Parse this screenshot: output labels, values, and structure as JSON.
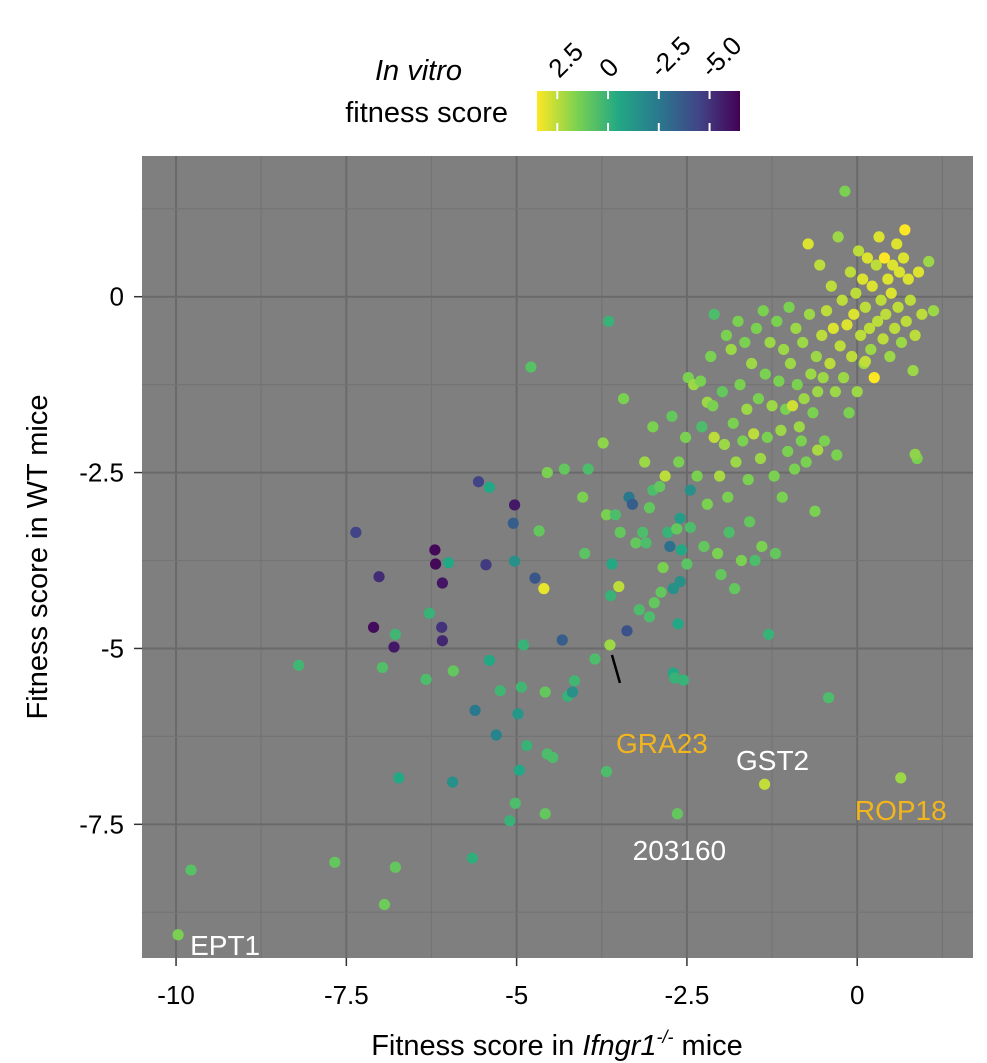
{
  "chart_data": {
    "type": "scatter",
    "xlabel_prefix": "Fitness score in ",
    "xlabel_gene": "Ifngr1",
    "xlabel_superscript": "-/-",
    "xlabel_suffix": " mice",
    "ylabel": "Fitness score in WT mice",
    "xlim": [
      -10.5,
      1.7
    ],
    "ylim": [
      -9.4,
      2.0
    ],
    "x_ticks": [
      -10,
      -7.5,
      -5,
      -2.5,
      0
    ],
    "x_tick_labels": [
      "-10",
      "-7.5",
      "-5",
      "-2.5",
      "0"
    ],
    "y_ticks": [
      0,
      -2.5,
      -5,
      -7.5
    ],
    "y_tick_labels": [
      "0",
      "-2.5",
      "-5",
      "-7.5"
    ],
    "background_color": "#7f7f7f",
    "grid": true,
    "grid_color": "#6e6e6e",
    "legend": {
      "title_line1": "In vitro",
      "title_line2": "fitness score",
      "placement": "top",
      "colormap": "viridis (reversed)",
      "range": [
        3.5,
        -6.5
      ],
      "ticks": [
        2.5,
        0,
        -2.5,
        -5.0
      ],
      "tick_labels": [
        "2.5",
        "0",
        "-2.5",
        "-5.0"
      ]
    },
    "annotations": [
      {
        "label": "EPT1",
        "x": -9.97,
        "y": -9.07,
        "color": "#ffffff"
      },
      {
        "label": "GRA23",
        "x": -3.63,
        "y": -4.95,
        "color": "#f2b51c"
      },
      {
        "label": "GST2",
        "x": -1.36,
        "y": -6.93,
        "color": "#ffffff"
      },
      {
        "label": "ROP18",
        "x": 0.64,
        "y": -6.84,
        "color": "#f2b51c"
      },
      {
        "label": "203160",
        "x": -2.64,
        "y": -7.35,
        "color": "#ffffff"
      }
    ],
    "points": [
      [
        -9.97,
        -9.07,
        1.5
      ],
      [
        -9.78,
        -8.15,
        0.7
      ],
      [
        -8.2,
        -5.24,
        0.2
      ],
      [
        -7.67,
        -8.04,
        1.0
      ],
      [
        -7.36,
        -3.35,
        -4.5
      ],
      [
        -7.1,
        -4.7,
        -6.2
      ],
      [
        -7.02,
        -3.98,
        -5.2
      ],
      [
        -6.97,
        -5.27,
        0.6
      ],
      [
        -6.94,
        -8.64,
        1.2
      ],
      [
        -6.8,
        -4.98,
        -5.8
      ],
      [
        -6.78,
        -4.8,
        0.2
      ],
      [
        -6.78,
        -8.11,
        1.0
      ],
      [
        -6.73,
        -6.84,
        -0.5
      ],
      [
        -6.33,
        -5.44,
        0.5
      ],
      [
        -6.28,
        -4.5,
        0.0
      ],
      [
        -6.2,
        -3.6,
        -6.3
      ],
      [
        -6.19,
        -3.8,
        -6.3
      ],
      [
        -6.1,
        -4.7,
        -5.0
      ],
      [
        -6.09,
        -4.07,
        -5.9
      ],
      [
        -6.09,
        -4.89,
        -5.4
      ],
      [
        -6.0,
        -3.78,
        -0.5
      ],
      [
        -5.94,
        -6.9,
        -1.5
      ],
      [
        -5.93,
        -5.32,
        1.0
      ],
      [
        -5.65,
        -7.98,
        -0.2
      ],
      [
        -5.61,
        -5.88,
        -2.5
      ],
      [
        -5.56,
        -2.63,
        -4.5
      ],
      [
        -5.45,
        -3.81,
        -4.8
      ],
      [
        -5.4,
        -5.17,
        -0.5
      ],
      [
        -5.4,
        -2.71,
        -0.5
      ],
      [
        -5.3,
        -6.23,
        -2.0
      ],
      [
        -5.24,
        -5.6,
        0.2
      ],
      [
        -5.1,
        -7.45,
        0.0
      ],
      [
        -5.05,
        -3.22,
        -3.5
      ],
      [
        -5.03,
        -3.76,
        -1.5
      ],
      [
        -5.03,
        -2.96,
        -5.8
      ],
      [
        -5.02,
        -7.2,
        0.5
      ],
      [
        -4.98,
        -5.93,
        -1.2
      ],
      [
        -4.96,
        -6.73,
        -0.5
      ],
      [
        -4.93,
        -5.55,
        0.2
      ],
      [
        -4.9,
        -4.95,
        0.0
      ],
      [
        -4.85,
        -6.38,
        0.0
      ],
      [
        -4.79,
        -1.0,
        0.7
      ],
      [
        -4.73,
        -4.0,
        -3.8
      ],
      [
        -4.67,
        -3.33,
        1.0
      ],
      [
        -4.6,
        -4.15,
        3.2
      ],
      [
        -4.58,
        -5.62,
        1.0
      ],
      [
        -4.58,
        -7.35,
        1.0
      ],
      [
        -4.55,
        -2.5,
        1.5
      ],
      [
        -4.55,
        -6.5,
        0.5
      ],
      [
        -4.47,
        -6.55,
        0.5
      ],
      [
        -4.33,
        -4.88,
        -3.5
      ],
      [
        -4.3,
        -2.45,
        1.0
      ],
      [
        -4.25,
        -5.68,
        0.0
      ],
      [
        -4.18,
        -5.62,
        -1.5
      ],
      [
        -4.15,
        -5.46,
        0.2
      ],
      [
        -4.03,
        -2.85,
        1.5
      ],
      [
        -4.0,
        -3.65,
        0.8
      ],
      [
        -3.95,
        -2.45,
        0.5
      ],
      [
        -3.85,
        -5.15,
        0.5
      ],
      [
        -3.73,
        -2.08,
        1.8
      ],
      [
        -3.68,
        -3.1,
        1.5
      ],
      [
        -3.68,
        -6.75,
        0.5
      ],
      [
        -3.65,
        -0.35,
        0.0
      ],
      [
        -3.63,
        -4.95,
        2.0
      ],
      [
        -3.62,
        -4.25,
        0.0
      ],
      [
        -3.6,
        -3.8,
        -0.5
      ],
      [
        -3.55,
        -3.1,
        0.5
      ],
      [
        -3.5,
        -4.12,
        2.5
      ],
      [
        -3.48,
        -3.35,
        1.0
      ],
      [
        -3.43,
        -1.45,
        1.5
      ],
      [
        -3.38,
        -4.75,
        -4.0
      ],
      [
        -3.35,
        -2.85,
        -2.5
      ],
      [
        -3.3,
        -2.95,
        -3.5
      ],
      [
        -3.25,
        -3.5,
        1.0
      ],
      [
        -3.2,
        -4.45,
        0.5
      ],
      [
        -3.15,
        -3.35,
        0.5
      ],
      [
        -3.12,
        -2.35,
        2.0
      ],
      [
        -3.1,
        -3.5,
        0.5
      ],
      [
        -3.05,
        -4.55,
        0.5
      ],
      [
        -3.05,
        -3.0,
        1.0
      ],
      [
        -3.0,
        -1.85,
        1.5
      ],
      [
        -3.0,
        -2.75,
        0.5
      ],
      [
        -2.98,
        -4.35,
        1.0
      ],
      [
        -2.9,
        -2.7,
        1.0
      ],
      [
        -2.88,
        -4.2,
        1.0
      ],
      [
        -2.85,
        -3.85,
        1.5
      ],
      [
        -2.82,
        -2.55,
        2.5
      ],
      [
        -2.78,
        -3.35,
        0.0
      ],
      [
        -2.75,
        -3.55,
        -2.8
      ],
      [
        -2.72,
        -1.7,
        1.0
      ],
      [
        -2.7,
        -4.15,
        -1.5
      ],
      [
        -2.7,
        -5.35,
        -0.5
      ],
      [
        -2.68,
        -5.42,
        0.0
      ],
      [
        -2.65,
        -3.3,
        1.0
      ],
      [
        -2.64,
        -7.35,
        1.0
      ],
      [
        -2.63,
        -4.65,
        -0.5
      ],
      [
        -2.62,
        -2.35,
        1.5
      ],
      [
        -2.6,
        -3.15,
        -1.0
      ],
      [
        -2.6,
        -4.05,
        -1.5
      ],
      [
        -2.58,
        -3.6,
        -0.5
      ],
      [
        -2.55,
        -5.45,
        0.0
      ],
      [
        -2.52,
        -2.0,
        1.5
      ],
      [
        -2.5,
        -3.8,
        0.8
      ],
      [
        -2.48,
        -1.15,
        1.5
      ],
      [
        -2.45,
        -2.75,
        -1.5
      ],
      [
        -2.45,
        -3.28,
        0.5
      ],
      [
        -2.4,
        -1.25,
        2.0
      ],
      [
        -2.35,
        -2.55,
        1.5
      ],
      [
        -2.3,
        -1.2,
        1.5
      ],
      [
        -2.28,
        -1.85,
        0.5
      ],
      [
        -2.25,
        -3.55,
        1.0
      ],
      [
        -2.2,
        -1.5,
        2.0
      ],
      [
        -2.2,
        -2.95,
        1.5
      ],
      [
        -2.15,
        -0.85,
        1.5
      ],
      [
        -2.12,
        -1.55,
        1.5
      ],
      [
        -2.1,
        -0.25,
        0.5
      ],
      [
        -2.1,
        -2.0,
        2.5
      ],
      [
        -2.05,
        -3.65,
        1.5
      ],
      [
        -2.02,
        -2.55,
        2.2
      ],
      [
        -2.0,
        -3.95,
        1.0
      ],
      [
        -1.98,
        -1.35,
        1.0
      ],
      [
        -1.95,
        -2.1,
        2.0
      ],
      [
        -1.92,
        -0.55,
        1.5
      ],
      [
        -1.9,
        -2.85,
        1.5
      ],
      [
        -1.88,
        -3.35,
        0.5
      ],
      [
        -1.85,
        -0.75,
        2.0
      ],
      [
        -1.82,
        -1.8,
        1.5
      ],
      [
        -1.8,
        -4.15,
        1.0
      ],
      [
        -1.78,
        -2.35,
        2.0
      ],
      [
        -1.75,
        -0.35,
        1.5
      ],
      [
        -1.72,
        -1.25,
        1.5
      ],
      [
        -1.7,
        -3.75,
        1.5
      ],
      [
        -1.68,
        -2.05,
        1.5
      ],
      [
        -1.65,
        -0.65,
        1.5
      ],
      [
        -1.62,
        -1.6,
        2.0
      ],
      [
        -1.6,
        -2.6,
        1.5
      ],
      [
        -1.58,
        -3.2,
        1.0
      ],
      [
        -1.55,
        -0.95,
        2.0
      ],
      [
        -1.52,
        -1.95,
        2.5
      ],
      [
        -1.5,
        -3.75,
        0.5
      ],
      [
        -1.48,
        -0.45,
        1.5
      ],
      [
        -1.45,
        -1.45,
        1.5
      ],
      [
        -1.42,
        -2.3,
        2.0
      ],
      [
        -1.4,
        -3.55,
        1.5
      ],
      [
        -1.38,
        -0.2,
        1.5
      ],
      [
        -1.36,
        -6.93,
        2.6
      ],
      [
        -1.35,
        -1.1,
        1.5
      ],
      [
        -1.32,
        -2.0,
        1.5
      ],
      [
        -1.3,
        -4.8,
        0.0
      ],
      [
        -1.28,
        -0.65,
        2.0
      ],
      [
        -1.25,
        -1.55,
        2.0
      ],
      [
        -1.22,
        -2.55,
        1.5
      ],
      [
        -1.2,
        -3.65,
        1.0
      ],
      [
        -1.18,
        -0.35,
        1.5
      ],
      [
        -1.15,
        -1.2,
        1.5
      ],
      [
        -1.12,
        -1.9,
        2.0
      ],
      [
        -1.1,
        -2.85,
        1.5
      ],
      [
        -1.08,
        -0.75,
        2.0
      ],
      [
        -1.05,
        -1.6,
        1.5
      ],
      [
        -1.02,
        -2.2,
        1.5
      ],
      [
        -1.0,
        -0.15,
        1.5
      ],
      [
        -0.98,
        -0.95,
        2.0
      ],
      [
        -0.95,
        -1.55,
        2.8
      ],
      [
        -0.92,
        -2.45,
        1.5
      ],
      [
        -0.9,
        -0.45,
        2.0
      ],
      [
        -0.88,
        -1.25,
        1.5
      ],
      [
        -0.85,
        -1.85,
        2.0
      ],
      [
        -0.82,
        -2.05,
        1.5
      ],
      [
        -0.8,
        -0.65,
        2.0
      ],
      [
        -0.78,
        -1.45,
        2.0
      ],
      [
        -0.75,
        -2.35,
        1.5
      ],
      [
        -0.72,
        0.75,
        3.0
      ],
      [
        -0.7,
        -0.25,
        2.0
      ],
      [
        -0.68,
        -1.1,
        2.0
      ],
      [
        -0.65,
        -1.65,
        1.5
      ],
      [
        -0.62,
        -3.05,
        1.5
      ],
      [
        -0.6,
        -0.85,
        2.0
      ],
      [
        -0.58,
        -1.35,
        2.0
      ],
      [
        -0.55,
        0.45,
        2.5
      ],
      [
        -0.52,
        -0.55,
        2.5
      ],
      [
        -0.5,
        -1.15,
        2.0
      ],
      [
        -0.48,
        -2.05,
        1.5
      ],
      [
        -0.45,
        -0.2,
        2.5
      ],
      [
        -0.42,
        -5.7,
        0.5
      ],
      [
        -0.4,
        -0.95,
        2.5
      ],
      [
        -0.38,
        0.15,
        2.5
      ],
      [
        -0.35,
        -0.45,
        3.0
      ],
      [
        -0.32,
        -1.35,
        2.0
      ],
      [
        -0.3,
        -2.25,
        1.5
      ],
      [
        -0.28,
        0.85,
        2.0
      ],
      [
        -0.25,
        -0.7,
        2.5
      ],
      [
        -0.22,
        -0.05,
        2.5
      ],
      [
        -0.2,
        -1.15,
        2.0
      ],
      [
        -0.18,
        1.5,
        1.5
      ],
      [
        -0.15,
        -0.4,
        3.0
      ],
      [
        -0.12,
        -1.65,
        1.5
      ],
      [
        -0.1,
        0.35,
        2.5
      ],
      [
        -0.08,
        -0.85,
        2.5
      ],
      [
        -0.05,
        -0.25,
        3.0
      ],
      [
        -0.02,
        0.05,
        2.5
      ],
      [
        0.0,
        -1.35,
        2.0
      ],
      [
        0.02,
        0.65,
        2.5
      ],
      [
        0.05,
        -0.55,
        2.5
      ],
      [
        0.08,
        0.25,
        3.0
      ],
      [
        0.1,
        -0.95,
        2.0
      ],
      [
        0.12,
        -0.15,
        2.5
      ],
      [
        0.15,
        0.55,
        3.0
      ],
      [
        0.18,
        -0.45,
        2.5
      ],
      [
        0.2,
        -0.75,
        2.0
      ],
      [
        0.22,
        0.15,
        3.0
      ],
      [
        0.25,
        -1.15,
        3.5
      ],
      [
        0.28,
        0.45,
        2.5
      ],
      [
        0.3,
        -0.35,
        2.5
      ],
      [
        0.32,
        0.85,
        3.0
      ],
      [
        0.35,
        -0.05,
        2.5
      ],
      [
        0.38,
        -0.6,
        2.5
      ],
      [
        0.4,
        0.55,
        3.5
      ],
      [
        0.42,
        -0.25,
        2.5
      ],
      [
        0.45,
        0.25,
        3.0
      ],
      [
        0.48,
        -0.85,
        2.0
      ],
      [
        0.5,
        0.05,
        3.0
      ],
      [
        0.52,
        0.45,
        3.0
      ],
      [
        0.55,
        -0.45,
        2.5
      ],
      [
        0.58,
        0.75,
        3.0
      ],
      [
        0.6,
        -0.15,
        2.5
      ],
      [
        0.62,
        0.35,
        3.0
      ],
      [
        0.64,
        -6.84,
        2.0
      ],
      [
        0.65,
        -0.65,
        2.0
      ],
      [
        0.68,
        0.55,
        3.0
      ],
      [
        0.7,
        0.95,
        3.5
      ],
      [
        0.72,
        -0.35,
        2.5
      ],
      [
        0.75,
        0.25,
        3.0
      ],
      [
        0.78,
        -0.05,
        2.5
      ],
      [
        0.82,
        -1.05,
        2.0
      ],
      [
        0.85,
        -0.55,
        2.5
      ],
      [
        0.88,
        -2.3,
        1.5
      ],
      [
        0.9,
        0.35,
        3.0
      ],
      [
        0.95,
        -0.25,
        2.5
      ],
      [
        1.05,
        0.5,
        2.0
      ],
      [
        1.12,
        -0.2,
        2.0
      ],
      [
        0.12,
        -0.92,
        2.6
      ],
      [
        -0.58,
        -2.18,
        2.2
      ],
      [
        0.85,
        -2.24,
        1.8
      ]
    ]
  }
}
